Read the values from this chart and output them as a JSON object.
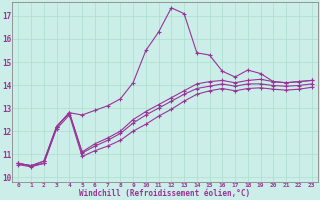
{
  "xlabel": "Windchill (Refroidissement éolien,°C)",
  "bg_color": "#cceee8",
  "grid_color": "#aaddcc",
  "line_color": "#993399",
  "xmin": -0.5,
  "xmax": 23.5,
  "ymin": 9.8,
  "ymax": 17.6,
  "yticks": [
    10,
    11,
    12,
    13,
    14,
    15,
    16,
    17
  ],
  "xticks": [
    0,
    1,
    2,
    3,
    4,
    5,
    6,
    7,
    8,
    9,
    10,
    11,
    12,
    13,
    14,
    15,
    16,
    17,
    18,
    19,
    20,
    21,
    22,
    23
  ],
  "lines": [
    [
      10.6,
      10.5,
      10.6,
      12.2,
      12.8,
      12.7,
      12.9,
      13.1,
      13.4,
      14.1,
      15.5,
      16.3,
      17.35,
      17.1,
      15.4,
      15.3,
      14.6,
      14.35,
      14.65,
      14.5,
      14.15,
      14.1,
      14.15,
      14.2
    ],
    [
      10.6,
      10.5,
      10.7,
      12.2,
      12.8,
      11.1,
      11.45,
      11.7,
      12.0,
      12.5,
      12.85,
      13.15,
      13.45,
      13.75,
      14.05,
      14.15,
      14.2,
      14.1,
      14.2,
      14.25,
      14.15,
      14.1,
      14.15,
      14.2
    ],
    [
      10.6,
      10.5,
      10.7,
      12.2,
      12.8,
      11.05,
      11.35,
      11.6,
      11.9,
      12.35,
      12.7,
      13.0,
      13.3,
      13.6,
      13.85,
      13.95,
      14.05,
      13.95,
      14.05,
      14.05,
      13.98,
      13.95,
      13.98,
      14.05
    ],
    [
      10.55,
      10.45,
      10.6,
      12.1,
      12.7,
      10.9,
      11.15,
      11.35,
      11.6,
      12.0,
      12.3,
      12.65,
      12.95,
      13.3,
      13.6,
      13.75,
      13.85,
      13.75,
      13.85,
      13.88,
      13.82,
      13.78,
      13.82,
      13.9
    ]
  ]
}
